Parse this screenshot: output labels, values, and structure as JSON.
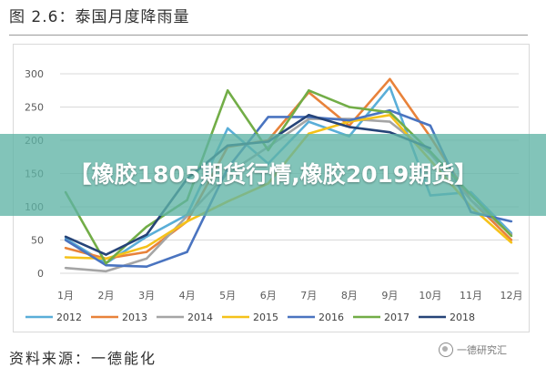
{
  "figure_title": "图 2.6：泰国月度降雨量",
  "source_text": "资料来源：一德能化",
  "watermark_text": "一德研究汇",
  "banner_text": "【橡胶1805期货行情,橡胶2019期货】",
  "chart_data": {
    "type": "line",
    "title": "图 2.6：泰国月度降雨量",
    "xlabel": "",
    "ylabel": "",
    "ylim": [
      0,
      300
    ],
    "yticks": [
      0,
      50,
      100,
      150,
      200,
      250,
      300
    ],
    "grid": true,
    "legend_position": "bottom",
    "categories": [
      "1月",
      "2月",
      "3月",
      "4月",
      "5月",
      "6月",
      "7月",
      "8月",
      "9月",
      "10月",
      "11月",
      "12月"
    ],
    "series": [
      {
        "name": "2012",
        "color": "#5aaed8",
        "values": [
          52,
          15,
          55,
          88,
          218,
          165,
          228,
          206,
          280,
          117,
          122,
          60
        ]
      },
      {
        "name": "2013",
        "color": "#e8823a",
        "values": [
          38,
          22,
          32,
          78,
          190,
          200,
          272,
          222,
          292,
          205,
          110,
          50
        ]
      },
      {
        "name": "2014",
        "color": "#a5a5a5",
        "values": [
          8,
          3,
          22,
          86,
          150,
          190,
          232,
          232,
          228,
          180,
          110,
          58
        ]
      },
      {
        "name": "2015",
        "color": "#f5c21a",
        "values": [
          24,
          22,
          40,
          78,
          108,
          135,
          210,
          228,
          238,
          170,
          100,
          46
        ]
      },
      {
        "name": "2016",
        "color": "#4a74c0",
        "values": [
          50,
          12,
          10,
          32,
          158,
          235,
          235,
          230,
          245,
          222,
          92,
          78
        ]
      },
      {
        "name": "2017",
        "color": "#72ad47",
        "values": [
          122,
          15,
          70,
          110,
          275,
          185,
          275,
          250,
          242,
          183,
          118,
          56
        ]
      },
      {
        "name": "2018",
        "color": "#264478",
        "values": [
          55,
          28,
          58,
          142,
          192,
          198,
          238,
          220,
          212,
          188,
          null,
          null
        ]
      }
    ]
  }
}
